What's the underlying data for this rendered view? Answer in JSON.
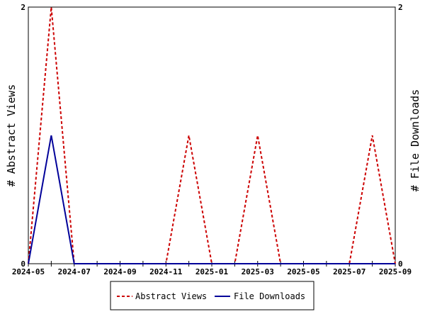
{
  "chart_data": {
    "type": "line",
    "x": [
      "2024-05",
      "2024-06",
      "2024-07",
      "2024-08",
      "2024-09",
      "2024-10",
      "2024-11",
      "2024-12",
      "2025-01",
      "2025-02",
      "2025-03",
      "2025-04",
      "2025-05",
      "2025-06",
      "2025-07",
      "2025-08",
      "2025-09"
    ],
    "x_ticks": [
      "2024-05",
      "2024-07",
      "2024-09",
      "2024-11",
      "2025-01",
      "2025-03",
      "2025-05",
      "2025-07",
      "2025-09"
    ],
    "series": [
      {
        "name": "Abstract Views",
        "axis": "left",
        "color": "#cc0000",
        "dash": "dashed",
        "values": [
          0,
          2,
          0,
          0,
          0,
          0,
          0,
          1,
          0,
          0,
          1,
          0,
          0,
          0,
          0,
          1,
          0
        ]
      },
      {
        "name": "File Downloads",
        "axis": "right",
        "color": "#000099",
        "dash": "solid",
        "values": [
          0,
          1,
          0,
          0,
          0,
          0,
          0,
          0,
          0,
          0,
          0,
          0,
          0,
          0,
          0,
          0,
          0
        ]
      }
    ],
    "ylabel": "# Abstract Views",
    "y2label": "# File Downloads",
    "ylim": [
      0,
      2
    ],
    "y2lim": [
      0,
      2
    ],
    "yticks": [
      "0",
      "2"
    ],
    "y2ticks": [
      "0",
      "2"
    ],
    "grid": false,
    "legend_position": "bottom"
  }
}
